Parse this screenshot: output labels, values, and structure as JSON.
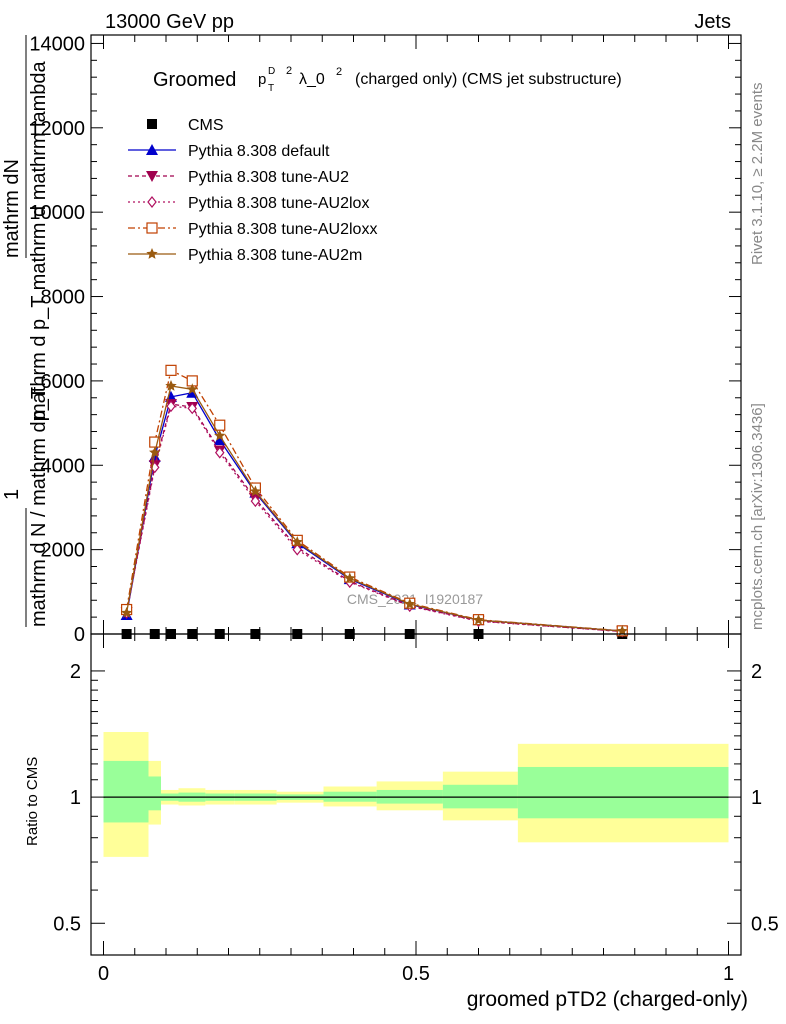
{
  "header": {
    "left": "13000 GeV pp",
    "right": "Jets"
  },
  "side": {
    "rivet": "Rivet 3.1.10, ≥ 2.2M events",
    "mcplots": "mcplots.cern.ch [arXiv:1306.3436]"
  },
  "chart_data": [
    {
      "type": "line",
      "title_main": "Groomed",
      "title_sup_p": "p",
      "title_sup_d": "D",
      "title_sub_t": "T",
      "title_exp": "2",
      "title_lambda": "λ_0",
      "title_lambda_exp": "2",
      "title_rest": "(charged only) (CMS jet substructure)",
      "ylabel_top": "1",
      "ylabel_frac1": "mathrm dN",
      "ylabel_frac2": "mathrm d p_T mathrm d mathrm lambda",
      "ylabel_bottom": "mathrm d N / mathrm dp_T",
      "ylim": [
        0,
        14200
      ],
      "xlim": [
        -0.02,
        1.02
      ],
      "yticks": [
        0,
        2000,
        4000,
        6000,
        8000,
        10000,
        12000,
        14000
      ],
      "ytick_labels": [
        "0",
        "2000",
        "4000",
        "6000",
        "8000",
        "10000",
        "12000",
        "14000"
      ],
      "watermark": "CMS_2021_I1920187",
      "x": [
        0.037,
        0.082,
        0.108,
        0.142,
        0.186,
        0.243,
        0.31,
        0.394,
        0.49,
        0.6,
        0.83
      ],
      "series": [
        {
          "name": "CMS",
          "color": "#000000",
          "marker": "square",
          "values": [
            0,
            0,
            0,
            0,
            0,
            0,
            0,
            0,
            0,
            0,
            0
          ]
        },
        {
          "name": "Pythia 8.308 default",
          "color": "#0000cc",
          "marker": "triangle-up",
          "dash": "",
          "values": [
            450,
            4200,
            5620,
            5720,
            4600,
            3350,
            2150,
            1300,
            700,
            330,
            70
          ]
        },
        {
          "name": "Pythia 8.308 tune-AU2",
          "color": "#a0004e",
          "marker": "triangle-down",
          "dash": "4,3",
          "values": [
            520,
            4000,
            5450,
            5380,
            4350,
            3200,
            2050,
            1250,
            670,
            310,
            60
          ]
        },
        {
          "name": "Pythia 8.308 tune-AU2lox",
          "color": "#b01060",
          "marker": "diamond-open",
          "dash": "2,3",
          "values": [
            500,
            3950,
            5400,
            5350,
            4300,
            3150,
            2000,
            1230,
            660,
            300,
            60
          ]
        },
        {
          "name": "Pythia 8.308 tune-AU2loxx",
          "color": "#c04000",
          "marker": "square-open",
          "dash": "7,3,2,3",
          "values": [
            580,
            4550,
            6250,
            6000,
            4950,
            3460,
            2220,
            1350,
            730,
            340,
            75
          ]
        },
        {
          "name": "Pythia 8.308 tune-AU2m",
          "color": "#9a5a10",
          "marker": "star",
          "dash": "",
          "values": [
            500,
            4300,
            5880,
            5800,
            4700,
            3380,
            2180,
            1320,
            710,
            330,
            70
          ]
        }
      ]
    },
    {
      "type": "area",
      "ylabel": "Ratio to CMS",
      "xlabel": "groomed pTD2 (charged-only)",
      "xlim": [
        -0.02,
        1.02
      ],
      "ylim": [
        0.42,
        2.45
      ],
      "yticks": [
        0.5,
        1,
        2
      ],
      "ytick_labels": [
        "0.5",
        "1",
        "2"
      ],
      "xticks": [
        0,
        0.5,
        1
      ],
      "xtick_labels": [
        "0",
        "0.5",
        "1"
      ],
      "band_colors": {
        "outer": "#ffff99",
        "inner": "#99ff99"
      },
      "bins": [
        {
          "x0": 0.0,
          "x1": 0.072,
          "inner": [
            0.87,
            1.22
          ],
          "outer": [
            0.72,
            1.43
          ]
        },
        {
          "x0": 0.072,
          "x1": 0.092,
          "inner": [
            0.93,
            1.12
          ],
          "outer": [
            0.86,
            1.22
          ]
        },
        {
          "x0": 0.092,
          "x1": 0.12,
          "inner": [
            0.98,
            1.02
          ],
          "outer": [
            0.96,
            1.04
          ]
        },
        {
          "x0": 0.12,
          "x1": 0.163,
          "inner": [
            0.975,
            1.025
          ],
          "outer": [
            0.955,
            1.05
          ]
        },
        {
          "x0": 0.163,
          "x1": 0.21,
          "inner": [
            0.98,
            1.02
          ],
          "outer": [
            0.96,
            1.04
          ]
        },
        {
          "x0": 0.21,
          "x1": 0.277,
          "inner": [
            0.98,
            1.02
          ],
          "outer": [
            0.96,
            1.04
          ]
        },
        {
          "x0": 0.277,
          "x1": 0.352,
          "inner": [
            0.985,
            1.015
          ],
          "outer": [
            0.97,
            1.03
          ]
        },
        {
          "x0": 0.352,
          "x1": 0.437,
          "inner": [
            0.975,
            1.03
          ],
          "outer": [
            0.95,
            1.06
          ]
        },
        {
          "x0": 0.437,
          "x1": 0.543,
          "inner": [
            0.965,
            1.04
          ],
          "outer": [
            0.93,
            1.09
          ]
        },
        {
          "x0": 0.543,
          "x1": 0.663,
          "inner": [
            0.94,
            1.07
          ],
          "outer": [
            0.88,
            1.15
          ]
        },
        {
          "x0": 0.663,
          "x1": 1.0,
          "inner": [
            0.89,
            1.18
          ],
          "outer": [
            0.78,
            1.34
          ]
        }
      ]
    }
  ]
}
